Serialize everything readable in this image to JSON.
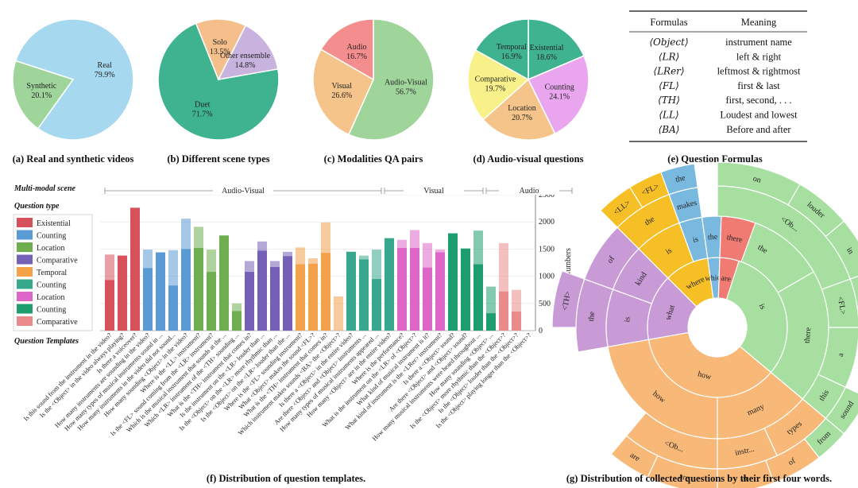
{
  "chart_data": [
    {
      "type": "pie",
      "caption": "(a) Real and synthetic videos",
      "slices": [
        {
          "label": "Real",
          "value": 79.9,
          "text": "79.9%",
          "color": "#a6d9f0"
        },
        {
          "label": "Synthetic",
          "value": 20.1,
          "text": "20.1%",
          "color": "#9fd59b"
        }
      ]
    },
    {
      "type": "pie",
      "caption": "(b) Different scene types",
      "slices": [
        {
          "label": "Duet",
          "value": 71.7,
          "text": "71.7%",
          "color": "#3fb38f"
        },
        {
          "label": "Solo",
          "value": 13.5,
          "text": "13.5%",
          "color": "#f5bf8c"
        },
        {
          "label": "Other ensemble",
          "value": 14.8,
          "text": "14.8%",
          "color": "#c7b3de"
        }
      ]
    },
    {
      "type": "pie",
      "caption": "(c) Modalities QA pairs",
      "slices": [
        {
          "label": "Audio-Visual",
          "value": 56.7,
          "text": "56.7%",
          "color": "#9fd59b"
        },
        {
          "label": "Visual",
          "value": 26.6,
          "text": "26.6%",
          "color": "#f5c48a"
        },
        {
          "label": "Audio",
          "value": 16.7,
          "text": "16.7%",
          "color": "#f48e8e"
        }
      ]
    },
    {
      "type": "pie",
      "caption": "(d) Audio-visual questions",
      "slices": [
        {
          "label": "Existential",
          "value": 18.6,
          "text": "18.6%",
          "color": "#3fb38f"
        },
        {
          "label": "Counting",
          "value": 24.1,
          "text": "24.1%",
          "color": "#e9a6ee"
        },
        {
          "label": "Location",
          "value": 20.7,
          "text": "20.7%",
          "color": "#f5c48a"
        },
        {
          "label": "Comparative",
          "value": 19.7,
          "text": "19.7%",
          "color": "#f8f18a"
        },
        {
          "label": "Temporal",
          "value": 16.9,
          "text": "16.9%",
          "color": "#3fb38f"
        }
      ]
    },
    {
      "type": "table",
      "caption": "(e) Question Formulas",
      "headers": [
        "Formulas",
        "Meaning"
      ],
      "rows": [
        [
          "⟨Object⟩",
          "instrument name"
        ],
        [
          "⟨LR⟩",
          "left & right"
        ],
        [
          "⟨LRer⟩",
          "leftmost & rightmost"
        ],
        [
          "⟨FL⟩",
          "first & last"
        ],
        [
          "⟨TH⟩",
          "first, second, . . ."
        ],
        [
          "⟨LL⟩",
          "Loudest and lowest"
        ],
        [
          "⟨BA⟩",
          "Before and after"
        ]
      ]
    },
    {
      "type": "bar",
      "caption": "(f) Distribution of question templates.",
      "ylabel": "Numbers",
      "ylim": [
        0,
        2500
      ],
      "yticks": [
        0,
        500,
        1000,
        1500,
        2000,
        2500
      ],
      "side_labels": [
        "Multi-modal scene",
        "Question type",
        "Question Templates"
      ],
      "groups": [
        {
          "label": "Audio-Visual",
          "from": 0,
          "to": 21
        },
        {
          "label": "Visual",
          "from": 22,
          "to": 29
        },
        {
          "label": "Audio",
          "from": 30,
          "to": 36
        }
      ],
      "legend": [
        {
          "label": "Existential",
          "color": "#d8505c"
        },
        {
          "label": "Counting",
          "color": "#5b9bd5"
        },
        {
          "label": "Location",
          "color": "#6fae4f"
        },
        {
          "label": "Comparative",
          "color": "#7560b8"
        },
        {
          "label": "Temporal",
          "color": "#f4a14a"
        },
        {
          "label": "Counting",
          "color": "#36a88c"
        },
        {
          "label": "Location",
          "color": "#dd66c8"
        },
        {
          "label": "Counting",
          "color": "#1e9e6e"
        },
        {
          "label": "Comparative",
          "color": "#ea8a8a"
        }
      ],
      "bars": [
        {
          "t": "Is this sound from the instrument in the video?",
          "total": 1400,
          "dark": 930,
          "c": "#d8505c"
        },
        {
          "t": "Is the <Object> in the video always playing?",
          "total": 1380,
          "dark": 1380,
          "c": "#d8505c"
        },
        {
          "t": "Is there a voiceover?",
          "total": 2260,
          "dark": 2260,
          "c": "#d8505c"
        },
        {
          "t": "How many instruments are sounding in the video?",
          "total": 1490,
          "dark": 1150,
          "c": "#5b9bd5"
        },
        {
          "t": "How many types of musical instruments sound in ...",
          "total": 1440,
          "dark": 1440,
          "c": "#5b9bd5"
        },
        {
          "t": "How many instruments in the video did not sound...",
          "total": 1480,
          "dark": 830,
          "c": "#5b9bd5"
        },
        {
          "t": "How many sounding <Object> in the video?",
          "total": 2060,
          "dark": 1500,
          "c": "#5b9bd5"
        },
        {
          "t": "Where is the <LL> instrument?",
          "total": 1910,
          "dark": 1520,
          "c": "#6fae4f"
        },
        {
          "t": "Is the <FL> sound coming from the <LR> instrument?",
          "total": 1490,
          "dark": 1080,
          "c": "#6fae4f"
        },
        {
          "t": "Which is the musical instrument that sounds at the ...",
          "total": 1750,
          "dark": 1750,
          "c": "#6fae4f"
        },
        {
          "t": "Which <LR> instrument of the <TH> sounding ...",
          "total": 500,
          "dark": 360,
          "c": "#6fae4f"
        },
        {
          "t": "What is the <TH> instrument that comes in?",
          "total": 1280,
          "dark": 1080,
          "c": "#7560b8"
        },
        {
          "t": "Is the instrument on the <LR> louder than ...",
          "total": 1640,
          "dark": 1470,
          "c": "#7560b8"
        },
        {
          "t": "Is the <Object> on the <LR> more rhythmic than ...",
          "total": 1280,
          "dark": 1170,
          "c": "#7560b8"
        },
        {
          "t": "Is the <Object> on the <LR> louder than the ...",
          "total": 1450,
          "dark": 1370,
          "c": "#7560b8"
        },
        {
          "t": "Where is the <FL> sounding instrument?",
          "total": 1530,
          "dark": 1220,
          "c": "#f4a14a"
        },
        {
          "t": "What <Object> makes the sound <FL>?",
          "total": 1330,
          "dark": 1230,
          "c": "#f4a14a"
        },
        {
          "t": "What is the <TH> instrument that comes in?",
          "total": 1990,
          "dark": 1430,
          "c": "#f4a14a"
        },
        {
          "t": "Which instrument makes sounds <BA> the <Object>?",
          "total": 630,
          "dark": 0,
          "c": "#f4a14a"
        },
        {
          "t": "Is there a <Object> in the entire video?",
          "total": 1450,
          "dark": 1450,
          "c": "#36a88c"
        },
        {
          "t": "Are there <Object> and <Object> instruments ...",
          "total": 1380,
          "dark": 1310,
          "c": "#36a88c"
        },
        {
          "t": "How many types of musical instruments appeared ...",
          "total": 1490,
          "dark": 950,
          "c": "#36a88c"
        },
        {
          "t": "How many <Object> are in the entire video?",
          "total": 1700,
          "dark": 1700,
          "c": "#36a88c"
        },
        {
          "t": "Where is the performance?",
          "total": 1670,
          "dark": 1520,
          "c": "#dd66c8"
        },
        {
          "t": "What is the instrument on the <LR> of <Object>?",
          "total": 1850,
          "dark": 1520,
          "c": "#dd66c8"
        },
        {
          "t": "What kind of musical instrument is it?",
          "total": 1610,
          "dark": 1160,
          "c": "#dd66c8"
        },
        {
          "t": "What kind of instrument is the <LRer> instrument?",
          "total": 1490,
          "dark": 1440,
          "c": "#dd66c8"
        },
        {
          "t": "Is there a <Object> sound?",
          "total": 1790,
          "dark": 1790,
          "c": "#1e9e6e"
        },
        {
          "t": "Are there <Object> and <Object> sound?",
          "total": 1510,
          "dark": 1510,
          "c": "#1e9e6e"
        },
        {
          "t": "How many musical instruments were heard throughout ...",
          "total": 1840,
          "dark": 1220,
          "c": "#1e9e6e"
        },
        {
          "t": "How many sounding <Object> ...",
          "total": 810,
          "dark": 320,
          "c": "#1e9e6e"
        },
        {
          "t": "Is the <Object> more rhythmic than the <Object>?",
          "total": 1610,
          "dark": 720,
          "c": "#ea8a8a"
        },
        {
          "t": "Is the <Object> louder than the <Object>?",
          "total": 750,
          "dark": 350,
          "c": "#ea8a8a"
        },
        {
          "t": "Is the <Object> playing longer than the <Object>?",
          "total": 0,
          "dark": 0,
          "c": "#ea8a8a"
        }
      ]
    },
    {
      "type": "sunburst",
      "caption": "(g) Distribution of collected questions by their first four words.",
      "words": [
        "on",
        "louder",
        "in",
        "<Ob...",
        "the",
        "is",
        "<FL>",
        "sound",
        "there",
        "a",
        "this",
        "sound",
        "from",
        "how",
        "many",
        "instr...",
        "are",
        "types",
        "of",
        "in",
        "<Ob...",
        "are",
        "what",
        "kind",
        "is",
        "of",
        "the",
        "<TH>",
        "where",
        "is",
        "the",
        "<LL>",
        "<FL>",
        "which",
        "is",
        "the",
        "makes",
        "<Ob...",
        "the",
        "there",
        "are"
      ]
    }
  ]
}
